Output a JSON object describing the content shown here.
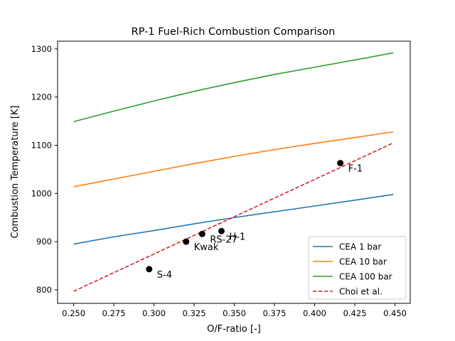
{
  "chart_data": {
    "type": "line",
    "title": "RP-1 Fuel-Rich Combustion Comparison",
    "xlabel": "O/F-ratio [-]",
    "ylabel": "Combustion Temperature [K]",
    "xlim": [
      0.24,
      0.4595
    ],
    "ylim": [
      772,
      1316
    ],
    "x_ticks": [
      0.25,
      0.275,
      0.3,
      0.325,
      0.35,
      0.375,
      0.4,
      0.425,
      0.45
    ],
    "x_tick_labels": [
      "0.250",
      "0.275",
      "0.300",
      "0.325",
      "0.350",
      "0.375",
      "0.400",
      "0.425",
      "0.450"
    ],
    "y_ticks": [
      800,
      900,
      1000,
      1100,
      1200,
      1300
    ],
    "y_tick_labels": [
      "800",
      "900",
      "1000",
      "1100",
      "1200",
      "1300"
    ],
    "grid": false,
    "legend_position": "lower-right",
    "series": [
      {
        "name": "CEA 1 bar",
        "color": "#1f77b4",
        "style": "solid",
        "x": [
          0.25,
          0.275,
          0.3,
          0.325,
          0.35,
          0.375,
          0.4,
          0.425,
          0.449
        ],
        "y": [
          895,
          910,
          923,
          937,
          950,
          962,
          974,
          986,
          998
        ]
      },
      {
        "name": "CEA 10 bar",
        "color": "#ff7f0e",
        "style": "solid",
        "x": [
          0.25,
          0.275,
          0.3,
          0.325,
          0.35,
          0.375,
          0.4,
          0.425,
          0.449
        ],
        "y": [
          1014,
          1030,
          1046,
          1062,
          1077,
          1091,
          1104,
          1116,
          1128
        ]
      },
      {
        "name": "CEA 100 bar",
        "color": "#2ca02c",
        "style": "solid",
        "x": [
          0.25,
          0.275,
          0.3,
          0.325,
          0.35,
          0.375,
          0.4,
          0.425,
          0.449
        ],
        "y": [
          1149,
          1171,
          1192,
          1212,
          1230,
          1247,
          1262,
          1277,
          1292
        ]
      },
      {
        "name": "Choi et al.",
        "color": "#d62728",
        "style": "dashed",
        "x": [
          0.25,
          0.449
        ],
        "y": [
          797,
          1105
        ]
      }
    ],
    "points": [
      {
        "label": "S-4",
        "x": 0.297,
        "y": 843
      },
      {
        "label": "Kwak",
        "x": 0.32,
        "y": 900
      },
      {
        "label": "RS-27",
        "x": 0.33,
        "y": 916
      },
      {
        "label": "H-1",
        "x": 0.342,
        "y": 922
      },
      {
        "label": "F-1",
        "x": 0.416,
        "y": 1063
      }
    ],
    "point_color": "#000000"
  }
}
